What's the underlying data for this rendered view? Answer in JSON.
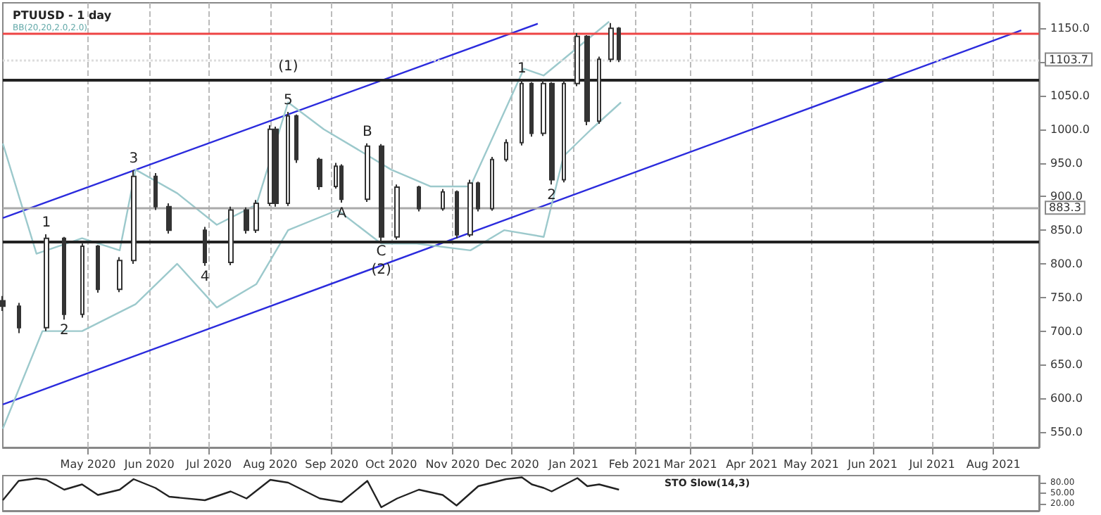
{
  "chart_data": [
    {
      "type": "candlestick",
      "title": "PTUUSD - 1 day",
      "subtitle": "BB(20,20,2.0,2.0)",
      "x": [
        "2020-03-19",
        "2020-03-27",
        "2020-04-10",
        "2020-04-19",
        "2020-04-28",
        "2020-05-06",
        "2020-05-17",
        "2020-05-24",
        "2020-06-04",
        "2020-06-11",
        "2020-06-29",
        "2020-07-12",
        "2020-07-20",
        "2020-07-25",
        "2020-08-01",
        "2020-08-04",
        "2020-08-10",
        "2020-08-14",
        "2020-08-26",
        "2020-09-03",
        "2020-09-06",
        "2020-09-19",
        "2020-09-26",
        "2020-10-04",
        "2020-10-15",
        "2020-10-27",
        "2020-11-03",
        "2020-11-10",
        "2020-11-14",
        "2020-11-21",
        "2020-11-28",
        "2020-12-06",
        "2020-12-11",
        "2020-12-17",
        "2020-12-21",
        "2020-12-27",
        "2021-01-03",
        "2021-01-08",
        "2021-01-14",
        "2021-01-20",
        "2021-01-24"
      ],
      "ohlc": [
        [
          745,
          752,
          730,
          737
        ],
        [
          737,
          742,
          697,
          705
        ],
        [
          705,
          844,
          700,
          838
        ],
        [
          838,
          840,
          717,
          725
        ],
        [
          725,
          830,
          720,
          826
        ],
        [
          826,
          828,
          757,
          762
        ],
        [
          762,
          810,
          758,
          805
        ],
        [
          805,
          939,
          800,
          930
        ],
        [
          930,
          935,
          880,
          885
        ],
        [
          885,
          890,
          845,
          850
        ],
        [
          850,
          855,
          797,
          802
        ],
        [
          802,
          885,
          798,
          880
        ],
        [
          880,
          884,
          845,
          850
        ],
        [
          850,
          895,
          846,
          890
        ],
        [
          890,
          1006,
          886,
          1000
        ],
        [
          1000,
          1004,
          885,
          890
        ],
        [
          890,
          1026,
          886,
          1020
        ],
        [
          1020,
          1022,
          950,
          955
        ],
        [
          955,
          958,
          910,
          915
        ],
        [
          915,
          950,
          912,
          945
        ],
        [
          945,
          948,
          891,
          896
        ],
        [
          896,
          979,
          892,
          975
        ],
        [
          975,
          978,
          834,
          840
        ],
        [
          840,
          918,
          836,
          914
        ],
        [
          914,
          916,
          878,
          882
        ],
        [
          882,
          911,
          879,
          907
        ],
        [
          907,
          909,
          838,
          843
        ],
        [
          843,
          925,
          840,
          920
        ],
        [
          920,
          922,
          878,
          882
        ],
        [
          882,
          959,
          879,
          955
        ],
        [
          955,
          985,
          952,
          980
        ],
        [
          980,
          1073,
          976,
          1068
        ],
        [
          1068,
          1070,
          989,
          994
        ],
        [
          994,
          1073,
          990,
          1068
        ],
        [
          1068,
          1070,
          918,
          925
        ],
        [
          925,
          1073,
          921,
          1068
        ],
        [
          1068,
          1143,
          1064,
          1138
        ],
        [
          1138,
          1140,
          1006,
          1012
        ],
        [
          1012,
          1108,
          1008,
          1104
        ],
        [
          1104,
          1158,
          1100,
          1150
        ],
        [
          1150,
          1152,
          1100,
          1103.7
        ]
      ],
      "color": "#333333",
      "series": [
        {
          "name": null,
          "type": "line",
          "color": "#2b2bdd",
          "x": [
            "2020-03-19",
            "2020-12-14"
          ],
          "values": [
            868,
            1157
          ]
        },
        {
          "name": null,
          "type": "line",
          "color": "#2b2bdd",
          "x": [
            "2020-03-19",
            "2021-08-15"
          ],
          "values": [
            591,
            1147
          ]
        },
        {
          "name": null,
          "type": "line",
          "color": "#9cc9cc",
          "x": [
            "2020-03-19",
            "2020-04-05",
            "2020-04-28",
            "2020-05-17",
            "2020-05-25",
            "2020-06-15",
            "2020-07-05",
            "2020-07-25",
            "2020-08-10",
            "2020-08-28",
            "2020-09-17",
            "2020-10-01",
            "2020-10-21",
            "2020-11-10",
            "2020-12-07",
            "2020-12-17",
            "2021-01-19"
          ],
          "values": [
            979,
            815,
            838,
            820,
            940,
            905,
            858,
            888,
            1040,
            1000,
            965,
            940,
            915,
            915,
            1090,
            1080,
            1160
          ]
        },
        {
          "name": null,
          "type": "line",
          "color": "#9cc9cc",
          "x": [
            "2020-03-19",
            "2020-04-08",
            "2020-04-28",
            "2020-05-25",
            "2020-06-15",
            "2020-07-05",
            "2020-07-25",
            "2020-08-10",
            "2020-09-04",
            "2020-09-26",
            "2020-10-14",
            "2020-11-10",
            "2020-11-27",
            "2020-12-17",
            "2020-12-27",
            "2021-01-10",
            "2021-01-25"
          ],
          "values": [
            555,
            700,
            700,
            740,
            800,
            735,
            770,
            850,
            880,
            830,
            830,
            820,
            850,
            840,
            960,
            1000,
            1040
          ]
        }
      ],
      "xlim": [
        "2020-03-19",
        "2021-08-24"
      ],
      "xticks": [
        {
          "value": "2020-05-01",
          "label": "May 2020"
        },
        {
          "value": "2020-06-01",
          "label": "Jun 2020"
        },
        {
          "value": "2020-07-01",
          "label": "Jul 2020"
        },
        {
          "value": "2020-08-01",
          "label": "Aug 2020"
        },
        {
          "value": "2020-09-01",
          "label": "Sep 2020"
        },
        {
          "value": "2020-10-01",
          "label": "Oct 2020"
        },
        {
          "value": "2020-11-01",
          "label": "Nov 2020"
        },
        {
          "value": "2020-12-01",
          "label": "Dec 2020"
        },
        {
          "value": "2021-01-01",
          "label": "Jan 2021"
        },
        {
          "value": "2021-02-01",
          "label": "Feb 2021"
        },
        {
          "value": "2021-03-01",
          "label": "Mar 2021"
        },
        {
          "value": "2021-04-01",
          "label": "Apr 2021"
        },
        {
          "value": "2021-05-01",
          "label": "May 2021"
        },
        {
          "value": "2021-06-01",
          "label": "Jun 2021"
        },
        {
          "value": "2021-07-01",
          "label": "Jul 2021"
        },
        {
          "value": "2021-08-01",
          "label": "Aug 2021"
        }
      ],
      "ylim": [
        527,
        1188
      ],
      "yticks": [
        {
          "value": 550,
          "label": "550.0"
        },
        {
          "value": 600,
          "label": "600.0"
        },
        {
          "value": 650,
          "label": "650.0"
        },
        {
          "value": 700,
          "label": "700.0"
        },
        {
          "value": 750,
          "label": "750.0"
        },
        {
          "value": 800,
          "label": "800.0"
        },
        {
          "value": 850,
          "label": "850.0"
        },
        {
          "value": 900,
          "label": "900.0"
        },
        {
          "value": 950,
          "label": "950.0"
        },
        {
          "value": 1000,
          "label": "1000.0"
        },
        {
          "value": 1050,
          "label": "1050.0"
        },
        {
          "value": 1100,
          "label": null
        },
        {
          "value": 1150,
          "label": "1150.0"
        }
      ],
      "grid": "x",
      "ref_lines": [
        {
          "axis": "y",
          "value": 1142,
          "color": "#ee4444"
        },
        {
          "axis": "y",
          "value": 1073,
          "color": "#222222"
        },
        {
          "axis": "y",
          "value": 833,
          "color": "#222222"
        },
        {
          "axis": "y",
          "value": 883.3,
          "label": "883.3",
          "color": "#aaaaaa"
        },
        {
          "axis": "y",
          "value": 1103.7,
          "label": "1103.7",
          "color": "#dddddd",
          "line_style": "dotted"
        }
      ],
      "annotations": [
        {
          "text": "1",
          "x": "2020-04-10",
          "y": 844
        },
        {
          "text": "2",
          "x": "2020-04-19",
          "y": 717
        },
        {
          "text": "3",
          "x": "2020-05-24",
          "y": 939
        },
        {
          "text": "4",
          "x": "2020-06-29",
          "y": 797
        },
        {
          "text": "5",
          "x": "2020-08-10",
          "y": 1026
        },
        {
          "text": "(1)",
          "x": "2020-08-10",
          "y": 1026
        },
        {
          "text": "A",
          "x": "2020-09-06",
          "y": 891
        },
        {
          "text": "B",
          "x": "2020-09-19",
          "y": 979
        },
        {
          "text": "C",
          "x": "2020-09-26",
          "y": 834
        },
        {
          "text": "(2)",
          "x": "2020-09-26",
          "y": 834
        },
        {
          "text": "1",
          "x": "2020-12-06",
          "y": 1073
        },
        {
          "text": "2",
          "x": "2020-12-21",
          "y": 918
        }
      ]
    },
    {
      "type": "line",
      "title": "STO Slow(14,3)",
      "color": "#222222",
      "x": [
        "2020-03-19",
        "2020-03-27",
        "2020-04-05",
        "2020-04-10",
        "2020-04-19",
        "2020-04-28",
        "2020-05-06",
        "2020-05-17",
        "2020-05-24",
        "2020-06-04",
        "2020-06-11",
        "2020-06-29",
        "2020-07-12",
        "2020-07-20",
        "2020-08-01",
        "2020-08-10",
        "2020-08-26",
        "2020-09-06",
        "2020-09-19",
        "2020-09-26",
        "2020-10-04",
        "2020-10-15",
        "2020-10-27",
        "2020-11-03",
        "2020-11-14",
        "2020-11-28",
        "2020-12-06",
        "2020-12-11",
        "2020-12-17",
        "2020-12-21",
        "2021-01-03",
        "2021-01-08",
        "2021-01-14",
        "2021-01-24"
      ],
      "values": [
        30,
        85,
        92,
        88,
        60,
        75,
        45,
        60,
        90,
        65,
        40,
        30,
        55,
        35,
        88,
        80,
        35,
        25,
        85,
        10,
        35,
        60,
        45,
        15,
        70,
        90,
        95,
        75,
        65,
        55,
        93,
        70,
        75,
        60
      ],
      "xlim": [
        "2020-03-19",
        "2021-08-24"
      ],
      "ylim": [
        0,
        100
      ],
      "yticks": [
        {
          "value": 20,
          "label": "20.00"
        },
        {
          "value": 50,
          "label": "50.00"
        },
        {
          "value": 80,
          "label": "80.00"
        }
      ],
      "grid": "x",
      "tick_labels": "y"
    }
  ]
}
